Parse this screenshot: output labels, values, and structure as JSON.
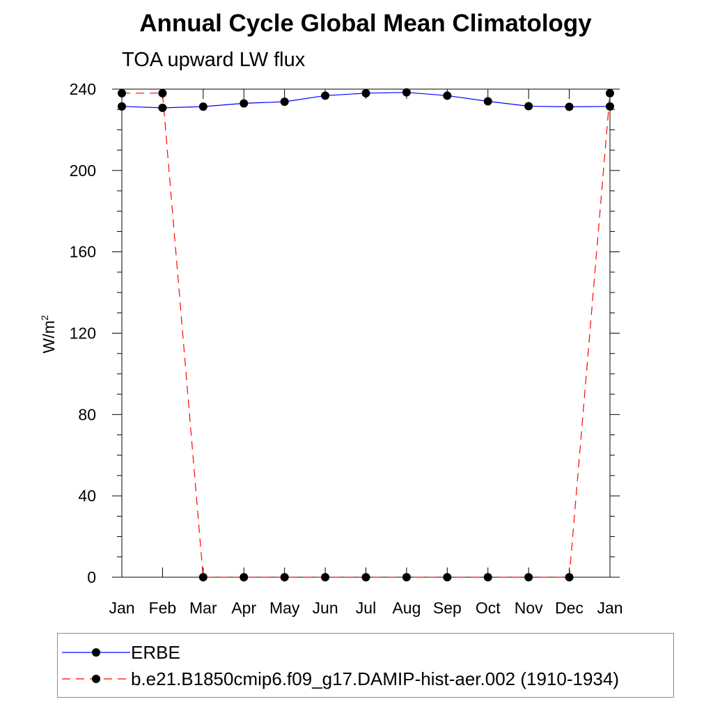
{
  "chart_data": {
    "type": "line",
    "title": "Annual Cycle Global Mean Climatology",
    "subtitle": "TOA upward LW flux",
    "ylabel": "W/m",
    "ylabel_superscript": "2",
    "xlabel": "",
    "categories": [
      "Jan",
      "Feb",
      "Mar",
      "Apr",
      "May",
      "Jun",
      "Jul",
      "Aug",
      "Sep",
      "Oct",
      "Nov",
      "Dec",
      "Jan"
    ],
    "ylim": [
      0,
      240
    ],
    "yticks": [
      0,
      40,
      80,
      120,
      160,
      200,
      240
    ],
    "series": [
      {
        "name": "ERBE",
        "color": "#0000ff",
        "style": "solid",
        "values": [
          231.5,
          230.8,
          231.4,
          233.0,
          233.8,
          236.8,
          238.0,
          238.4,
          236.8,
          234.0,
          231.6,
          231.3,
          231.5
        ]
      },
      {
        "name": "b.e21.B1850cmip6.f09_g17.DAMIP-hist-aer.002 (1910-1934)",
        "color": "#ff0000",
        "style": "dashed",
        "values": [
          238.0,
          238.0,
          0,
          0,
          0,
          0,
          0,
          0,
          0,
          0,
          0,
          0,
          238.0
        ]
      }
    ]
  }
}
